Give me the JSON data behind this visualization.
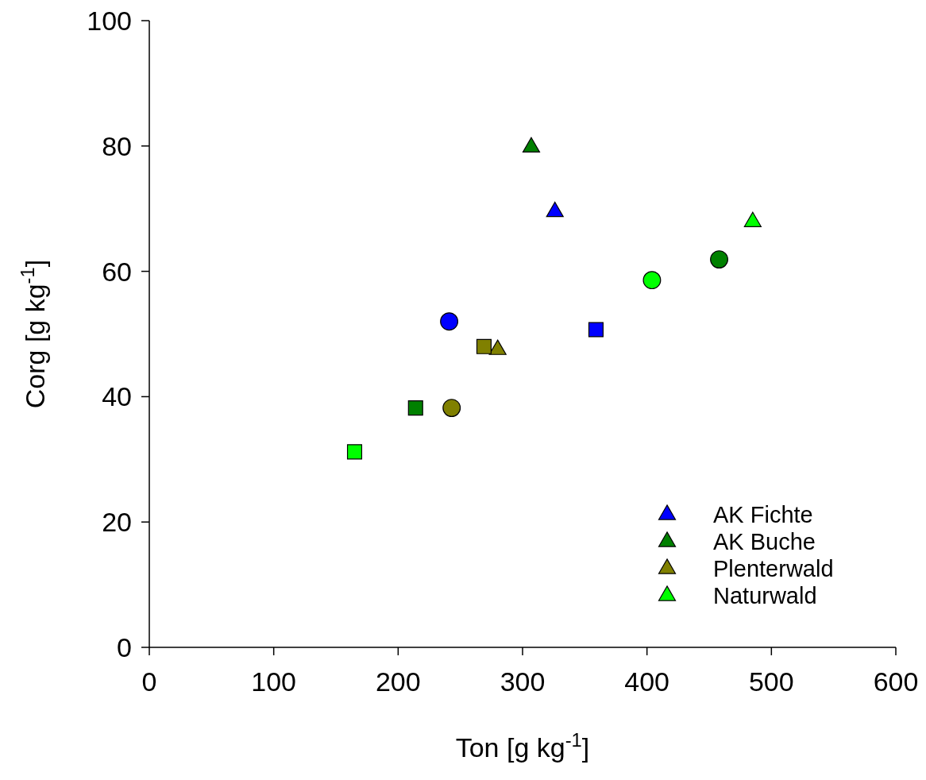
{
  "chart_data": {
    "type": "scatter",
    "xlabel": "Ton [g kg$^{-1}$]",
    "ylabel": "Corg [g kg$^{-1}$]",
    "xlim": [
      0,
      600
    ],
    "xticks": [
      0,
      100,
      200,
      300,
      400,
      500,
      600
    ],
    "ylim": [
      0,
      100
    ],
    "yticks": [
      0,
      20,
      40,
      60,
      80,
      100
    ],
    "grid": false,
    "legend": "bottom right",
    "series": [
      {
        "name": "AK Fichte",
        "color": "#0000ff",
        "marker": "triangle",
        "x": [
          326
        ],
        "values": [
          69.5
        ]
      },
      {
        "name": "AK Buche",
        "color": "#008000",
        "marker": "triangle",
        "x": [
          307
        ],
        "values": [
          79.8
        ]
      },
      {
        "name": "Plenterwald",
        "color": "#808000",
        "marker": "triangle",
        "x": [
          280
        ],
        "values": [
          47.5
        ]
      },
      {
        "name": "Naturwald",
        "color": "#00ff00",
        "marker": "triangle",
        "x": [
          485
        ],
        "values": [
          67.9
        ]
      },
      {
        "color": "#0000ff",
        "marker": "circle",
        "x": [
          241
        ],
        "values": [
          52.0
        ]
      },
      {
        "color": "#0000ff",
        "marker": "square",
        "x": [
          359
        ],
        "values": [
          50.7
        ]
      },
      {
        "color": "#008000",
        "marker": "circle",
        "x": [
          458
        ],
        "values": [
          61.9
        ]
      },
      {
        "color": "#008000",
        "marker": "square",
        "x": [
          214
        ],
        "values": [
          38.2
        ]
      },
      {
        "color": "#808000",
        "marker": "circle",
        "x": [
          243
        ],
        "values": [
          38.2
        ]
      },
      {
        "color": "#808000",
        "marker": "square",
        "x": [
          269
        ],
        "values": [
          48.0
        ]
      },
      {
        "color": "#00ff00",
        "marker": "circle",
        "x": [
          404
        ],
        "values": [
          58.6
        ]
      },
      {
        "color": "#00ff00",
        "marker": "square",
        "x": [
          165
        ],
        "values": [
          31.2
        ]
      }
    ]
  }
}
